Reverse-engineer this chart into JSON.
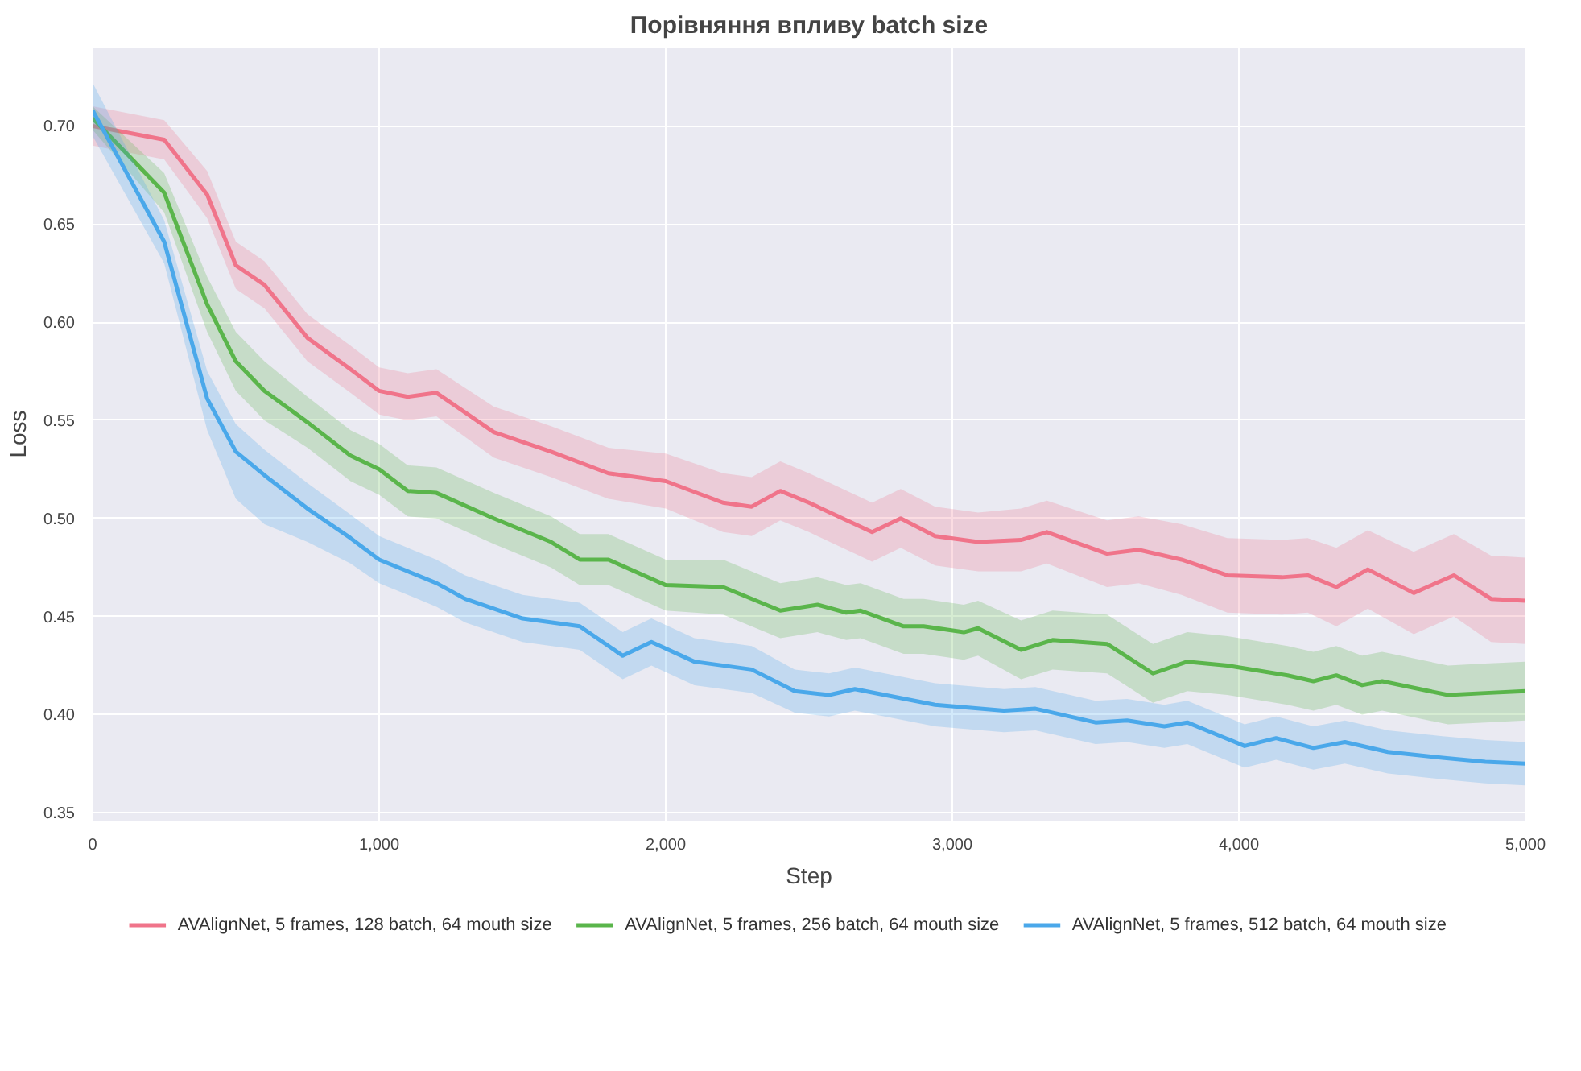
{
  "chart_data": {
    "type": "line",
    "title": "Порівняння впливу batch size",
    "xlabel": "Step",
    "ylabel": "Loss",
    "xlim": [
      0,
      5000
    ],
    "ylim": [
      0.346,
      0.74
    ],
    "xticks": [
      0,
      {
        "value": 1000,
        "label": "1,000"
      },
      {
        "value": 2000,
        "label": "2,000"
      },
      {
        "value": 3000,
        "label": "3,000"
      },
      {
        "value": 4000,
        "label": "4,000"
      },
      {
        "value": 5000,
        "label": "5,000"
      }
    ],
    "yticks": [
      {
        "value": 0.35,
        "label": "0.35"
      },
      {
        "value": 0.4,
        "label": "0.40"
      },
      {
        "value": 0.45,
        "label": "0.45"
      },
      {
        "value": 0.5,
        "label": "0.50"
      },
      {
        "value": 0.55,
        "label": "0.55"
      },
      {
        "value": 0.6,
        "label": "0.60"
      },
      {
        "value": 0.65,
        "label": "0.65"
      },
      {
        "value": 0.7,
        "label": "0.70"
      }
    ],
    "grid": true,
    "legend": "bottom",
    "line_style": "solid",
    "series": [
      {
        "name": "AVAlignNet, 5 frames, 128 batch, 64 mouth size",
        "color": "#f0748a",
        "x": [
          0,
          250,
          400,
          500,
          600,
          750,
          900,
          1000,
          1100,
          1200,
          1400,
          1600,
          1800,
          2000,
          2200,
          2300,
          2400,
          2500,
          2720,
          2820,
          2940,
          3090,
          3240,
          3330,
          3540,
          3650,
          3800,
          3960,
          4150,
          4240,
          4340,
          4450,
          4610,
          4750,
          4880,
          5000
        ],
        "values": [
          0.7,
          0.693,
          0.665,
          0.629,
          0.619,
          0.592,
          0.576,
          0.565,
          0.562,
          0.564,
          0.544,
          0.534,
          0.523,
          0.519,
          0.508,
          0.506,
          0.514,
          0.508,
          0.493,
          0.5,
          0.491,
          0.488,
          0.489,
          0.493,
          0.482,
          0.484,
          0.479,
          0.471,
          0.47,
          0.471,
          0.465,
          0.474,
          0.462,
          0.471,
          0.459,
          0.458
        ],
        "lower": [
          0.69,
          0.683,
          0.653,
          0.617,
          0.607,
          0.58,
          0.564,
          0.553,
          0.55,
          0.552,
          0.531,
          0.521,
          0.51,
          0.505,
          0.493,
          0.491,
          0.499,
          0.493,
          0.478,
          0.485,
          0.476,
          0.473,
          0.473,
          0.477,
          0.465,
          0.467,
          0.461,
          0.452,
          0.451,
          0.452,
          0.445,
          0.454,
          0.441,
          0.45,
          0.437,
          0.436
        ],
        "upper": [
          0.71,
          0.703,
          0.677,
          0.641,
          0.631,
          0.604,
          0.588,
          0.577,
          0.574,
          0.576,
          0.557,
          0.547,
          0.536,
          0.533,
          0.523,
          0.521,
          0.529,
          0.523,
          0.508,
          0.515,
          0.506,
          0.503,
          0.505,
          0.509,
          0.499,
          0.501,
          0.497,
          0.49,
          0.489,
          0.49,
          0.485,
          0.494,
          0.483,
          0.492,
          0.481,
          0.48
        ]
      },
      {
        "name": "AVAlignNet, 5 frames, 256 batch, 64 mouth size",
        "color": "#5ab54b",
        "x": [
          0,
          250,
          400,
          500,
          600,
          750,
          900,
          1000,
          1100,
          1200,
          1400,
          1600,
          1700,
          1800,
          2000,
          2200,
          2400,
          2530,
          2630,
          2680,
          2830,
          2900,
          3040,
          3090,
          3240,
          3350,
          3540,
          3700,
          3820,
          3960,
          4170,
          4260,
          4340,
          4430,
          4500,
          4730,
          4860,
          5000
        ],
        "values": [
          0.704,
          0.666,
          0.609,
          0.58,
          0.565,
          0.549,
          0.532,
          0.525,
          0.514,
          0.513,
          0.5,
          0.488,
          0.479,
          0.479,
          0.466,
          0.465,
          0.453,
          0.456,
          0.452,
          0.453,
          0.445,
          0.445,
          0.442,
          0.444,
          0.433,
          0.438,
          0.436,
          0.421,
          0.427,
          0.425,
          0.42,
          0.417,
          0.42,
          0.415,
          0.417,
          0.41,
          0.411,
          0.412
        ],
        "lower": [
          0.698,
          0.656,
          0.595,
          0.565,
          0.55,
          0.536,
          0.519,
          0.512,
          0.501,
          0.5,
          0.487,
          0.475,
          0.466,
          0.466,
          0.453,
          0.451,
          0.439,
          0.442,
          0.438,
          0.439,
          0.431,
          0.431,
          0.428,
          0.43,
          0.418,
          0.423,
          0.421,
          0.406,
          0.412,
          0.41,
          0.405,
          0.402,
          0.405,
          0.4,
          0.402,
          0.395,
          0.396,
          0.397
        ],
        "upper": [
          0.71,
          0.676,
          0.623,
          0.595,
          0.58,
          0.562,
          0.545,
          0.538,
          0.527,
          0.526,
          0.513,
          0.501,
          0.492,
          0.492,
          0.479,
          0.479,
          0.467,
          0.47,
          0.466,
          0.467,
          0.459,
          0.459,
          0.456,
          0.458,
          0.448,
          0.453,
          0.451,
          0.436,
          0.442,
          0.44,
          0.435,
          0.432,
          0.435,
          0.43,
          0.432,
          0.425,
          0.426,
          0.427
        ]
      },
      {
        "name": "AVAlignNet, 5 frames, 512 batch, 64 mouth size",
        "color": "#4aa8ea",
        "x": [
          0,
          250,
          400,
          500,
          600,
          750,
          900,
          1000,
          1100,
          1200,
          1300,
          1500,
          1700,
          1850,
          1950,
          2100,
          2300,
          2450,
          2570,
          2660,
          2940,
          3180,
          3290,
          3500,
          3610,
          3740,
          3820,
          4020,
          4130,
          4260,
          4370,
          4520,
          4710,
          4860,
          5000
        ],
        "values": [
          0.708,
          0.641,
          0.561,
          0.534,
          0.522,
          0.505,
          0.49,
          0.479,
          0.473,
          0.467,
          0.459,
          0.449,
          0.445,
          0.43,
          0.437,
          0.427,
          0.423,
          0.412,
          0.41,
          0.413,
          0.405,
          0.402,
          0.403,
          0.396,
          0.397,
          0.394,
          0.396,
          0.384,
          0.388,
          0.383,
          0.386,
          0.381,
          0.378,
          0.376,
          0.375
        ],
        "lower": [
          0.695,
          0.63,
          0.545,
          0.51,
          0.497,
          0.488,
          0.477,
          0.467,
          0.461,
          0.455,
          0.447,
          0.437,
          0.433,
          0.418,
          0.425,
          0.415,
          0.411,
          0.401,
          0.399,
          0.402,
          0.394,
          0.391,
          0.392,
          0.385,
          0.386,
          0.383,
          0.385,
          0.373,
          0.377,
          0.372,
          0.375,
          0.37,
          0.367,
          0.365,
          0.364
        ],
        "upper": [
          0.722,
          0.652,
          0.575,
          0.548,
          0.535,
          0.518,
          0.502,
          0.491,
          0.485,
          0.479,
          0.471,
          0.461,
          0.457,
          0.442,
          0.449,
          0.439,
          0.435,
          0.423,
          0.421,
          0.424,
          0.416,
          0.413,
          0.414,
          0.407,
          0.408,
          0.405,
          0.407,
          0.395,
          0.399,
          0.394,
          0.397,
          0.392,
          0.389,
          0.387,
          0.386
        ]
      }
    ]
  }
}
